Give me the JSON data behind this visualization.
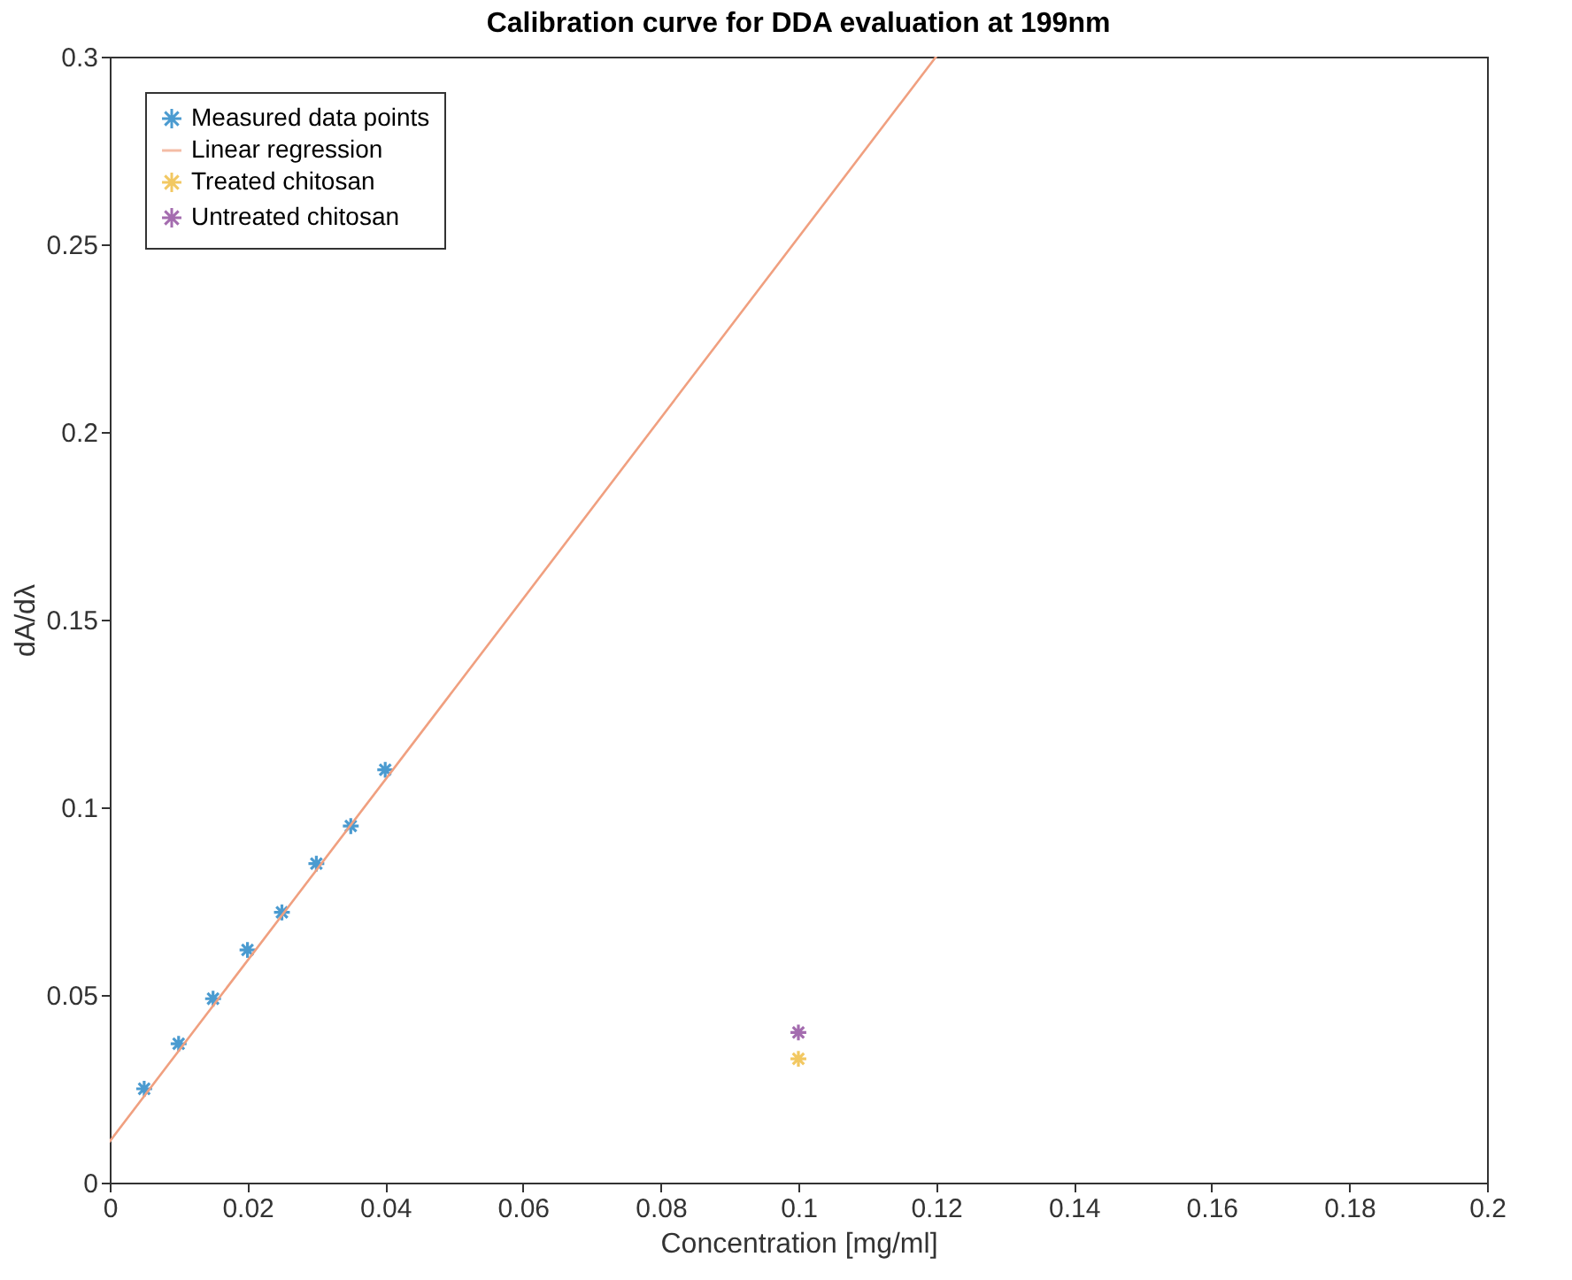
{
  "chart_data": {
    "type": "scatter",
    "title": "Calibration curve for DDA evaluation at 199nm",
    "xlabel": "Concentration [mg/ml]",
    "ylabel": "dA/dλ",
    "series": [
      {
        "name": "Measured data points",
        "color": "#0072bd",
        "x": [
          0.005,
          0.01,
          0.015,
          0.02,
          0.025,
          0.03,
          0.035,
          0.04
        ],
        "values": [
          0.025,
          0.037,
          0.049,
          0.062,
          0.072,
          0.085,
          0.095,
          0.11
        ]
      },
      {
        "name": "Linear regression",
        "type": "line",
        "marker": "none",
        "color": "#f0a080",
        "x": [
          0,
          0.12
        ],
        "values": [
          0.011,
          0.3
        ]
      },
      {
        "name": "Treated chitosan",
        "color": "#edb120",
        "x": [
          0.1
        ],
        "values": [
          0.033
        ]
      },
      {
        "name": "Untreated chitosan",
        "color": "#7e2f8e",
        "x": [
          0.1
        ],
        "values": [
          0.04
        ]
      }
    ],
    "xlim": [
      0,
      0.2
    ],
    "xticks": [
      0,
      0.02,
      0.04,
      0.06,
      0.08,
      0.1,
      0.12,
      0.14,
      0.16,
      0.18,
      0.2
    ],
    "ylim": [
      0,
      0.3
    ],
    "yticks": [
      0,
      0.05,
      0.1,
      0.15,
      0.2,
      0.25,
      0.3
    ],
    "grid": false,
    "legend": "top left",
    "marker": "cross",
    "line_style": "solid"
  }
}
